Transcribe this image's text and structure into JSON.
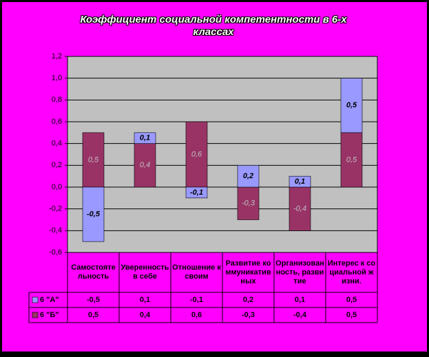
{
  "chart_data": {
    "type": "stacked-bar",
    "title": "Коэффициент социальной компетентности в 6-х классах",
    "categories": [
      "Самостоятельность",
      "Уверенность в себе",
      "Отношение к своим",
      "Развитие коммуникативных",
      "Организованность, развитие",
      "Интерес к социальной жизни."
    ],
    "series": [
      {
        "name": "6 \"А\"",
        "color": "#9999ff",
        "values": [
          -0.5,
          0.1,
          -0.1,
          0.2,
          0.1,
          0.5
        ],
        "value_labels": [
          "-0,5",
          "0,1",
          "-0,1",
          "0,2",
          "0,1",
          "0,5"
        ]
      },
      {
        "name": "6 \"Б\"",
        "color": "#993366",
        "values": [
          0.5,
          0.4,
          0.6,
          -0.3,
          -0.4,
          0.5
        ],
        "value_labels": [
          "0,5",
          "0,4",
          "0,6",
          "-0,3",
          "-0,4",
          "0,5"
        ]
      }
    ],
    "stack_order": [
      1,
      0
    ],
    "ylim": [
      -0.6,
      1.2
    ],
    "yticks": [
      {
        "value": -0.6,
        "label": "-0,6"
      },
      {
        "value": -0.4,
        "label": "-0,4"
      },
      {
        "value": -0.2,
        "label": "-0,2"
      },
      {
        "value": 0,
        "label": "0,0"
      },
      {
        "value": 0.2,
        "label": "0,2"
      },
      {
        "value": 0.4,
        "label": "0,4"
      },
      {
        "value": 0.6,
        "label": "0,6"
      },
      {
        "value": 0.8,
        "label": "0,8"
      },
      {
        "value": 1.0,
        "label": "1,0"
      },
      {
        "value": 1.2,
        "label": "1,2"
      }
    ],
    "grid": true,
    "data_table": true
  }
}
